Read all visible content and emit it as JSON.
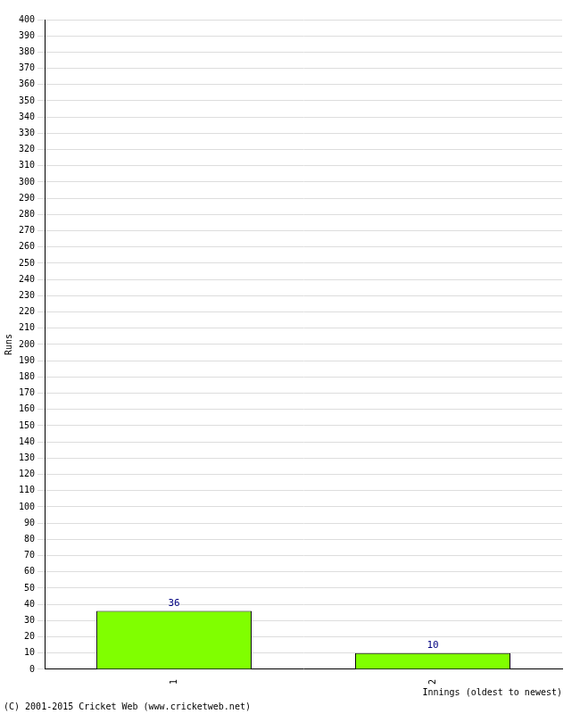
{
  "chart_data": {
    "type": "bar",
    "categories": [
      "1",
      "2"
    ],
    "values": [
      36,
      10
    ],
    "color": "#80ff00",
    "y_label": "Runs",
    "x_label": "Innings (oldest to newest)",
    "annotations": [
      "(C) 2001-2015 Cricket Web (www.cricketweb.net)"
    ],
    "ylim": [
      0,
      400
    ],
    "yticks": [
      0,
      10,
      20,
      30,
      40,
      50,
      60,
      70,
      80,
      90,
      100,
      110,
      120,
      130,
      140,
      150,
      160,
      170,
      180,
      190,
      200,
      210,
      220,
      230,
      240,
      250,
      260,
      270,
      280,
      290,
      300,
      310,
      320,
      330,
      340,
      350,
      360,
      370,
      380,
      390,
      400
    ],
    "grid": true,
    "data_labels": true
  }
}
